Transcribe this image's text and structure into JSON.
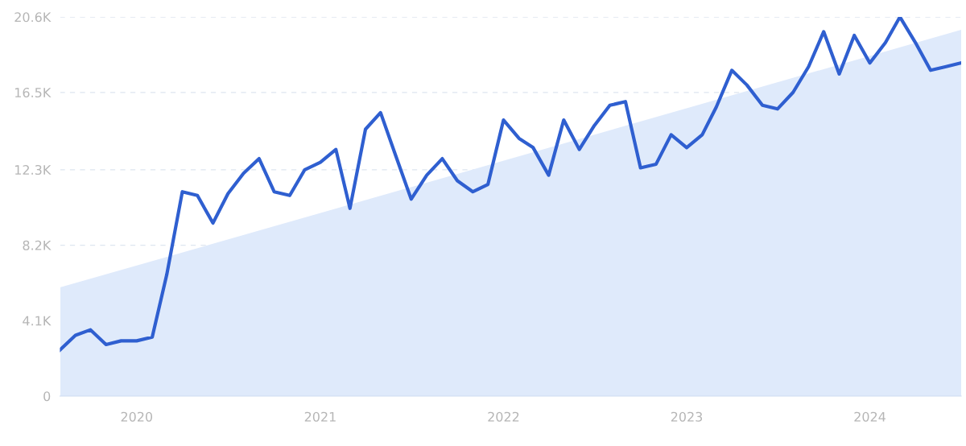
{
  "chart_data": {
    "type": "line",
    "x": [
      "2019-08",
      "2019-09",
      "2019-10",
      "2019-11",
      "2019-12",
      "2020-01",
      "2020-02",
      "2020-03",
      "2020-04",
      "2020-05",
      "2020-06",
      "2020-07",
      "2020-08",
      "2020-09",
      "2020-10",
      "2020-11",
      "2020-12",
      "2021-01",
      "2021-02",
      "2021-03",
      "2021-04",
      "2021-05",
      "2021-06",
      "2021-07",
      "2021-08",
      "2021-09",
      "2021-10",
      "2021-11",
      "2021-12",
      "2022-01",
      "2022-02",
      "2022-03",
      "2022-04",
      "2022-05",
      "2022-06",
      "2022-07",
      "2022-08",
      "2022-09",
      "2022-10",
      "2022-11",
      "2022-12",
      "2023-01",
      "2023-02",
      "2023-03",
      "2023-04",
      "2023-05",
      "2023-06",
      "2023-07",
      "2023-08",
      "2023-09",
      "2023-10",
      "2023-11",
      "2023-12",
      "2024-01",
      "2024-02",
      "2024-03",
      "2024-04",
      "2024-05",
      "2024-06",
      "2024-07"
    ],
    "series": [
      {
        "type": "area",
        "color": "#dfeafb",
        "x": [
          "2019-08",
          "2024-07"
        ],
        "values": [
          5.9,
          19.9
        ]
      },
      {
        "color": "#2f5fd0",
        "values": [
          2.5,
          3.3,
          3.6,
          2.8,
          3.0,
          3.0,
          3.2,
          6.6,
          11.1,
          10.9,
          9.4,
          11.0,
          12.1,
          12.9,
          11.1,
          10.9,
          12.3,
          12.7,
          13.4,
          10.2,
          14.5,
          15.4,
          13.0,
          10.7,
          12.0,
          12.9,
          11.7,
          11.1,
          11.5,
          15.0,
          14.0,
          13.5,
          12.0,
          15.0,
          13.4,
          14.7,
          15.8,
          16.0,
          12.4,
          12.6,
          14.2,
          13.5,
          14.2,
          15.7,
          17.7,
          16.9,
          15.8,
          15.6,
          16.5,
          17.9,
          19.8,
          17.5,
          19.6,
          18.1,
          19.2,
          20.6,
          19.2,
          17.7,
          17.9,
          18.1
        ]
      }
    ],
    "ylim": [
      0,
      20.6
    ],
    "yticks": [
      0,
      {
        "value": 4.1,
        "label": "4.1K"
      },
      {
        "value": 8.2,
        "label": "8.2K"
      },
      {
        "value": 12.3,
        "label": "12.3K"
      },
      {
        "value": 16.5,
        "label": "16.5K"
      },
      {
        "value": 20.6,
        "label": "20.6K"
      }
    ],
    "xlim": [
      "2019-08",
      "2024-07"
    ],
    "xticks": [
      {
        "value": "2020-01",
        "label": "2020"
      },
      {
        "value": "2021-01",
        "label": "2021"
      },
      {
        "value": "2022-01",
        "label": "2022"
      },
      {
        "value": "2023-01",
        "label": "2023"
      },
      {
        "value": "2024-01",
        "label": "2024"
      }
    ],
    "grid": "y",
    "marker": "none",
    "line_style": "solid"
  }
}
